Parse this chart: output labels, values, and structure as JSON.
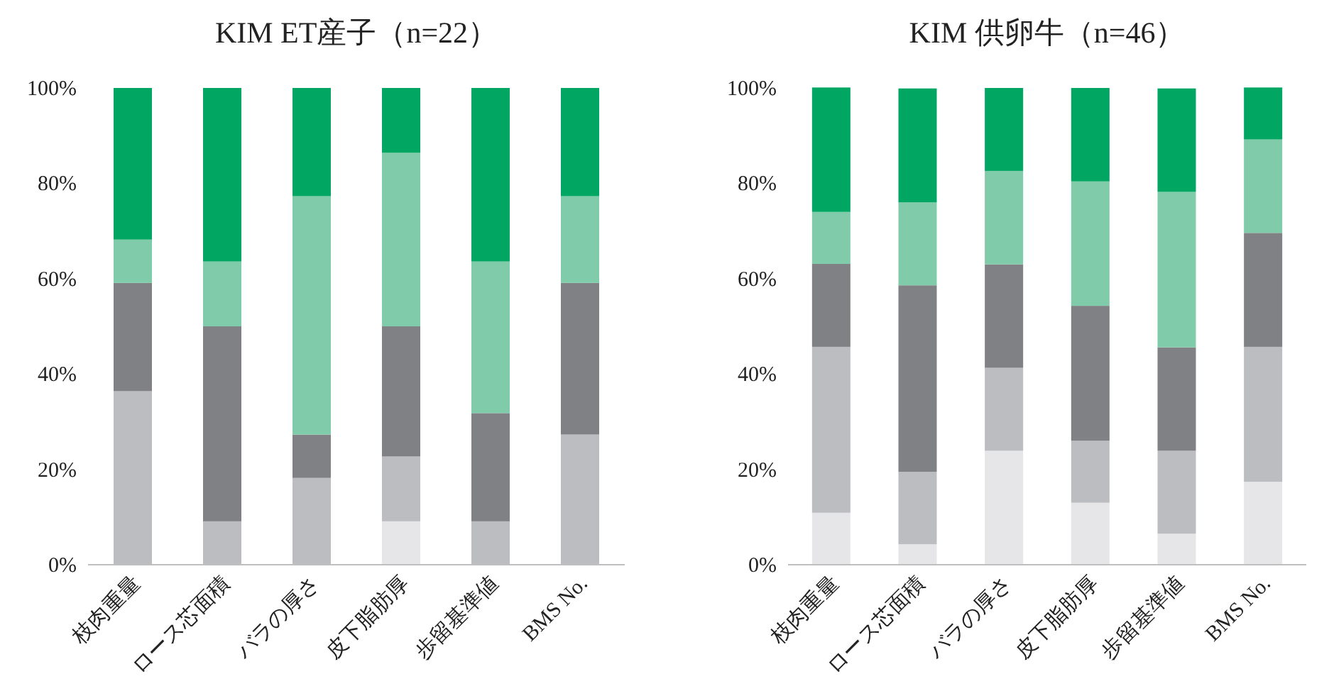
{
  "chart_data": [
    {
      "type": "bar",
      "stacked": true,
      "title": "KIM ET産子（n=22）",
      "categories": [
        "枝肉重量",
        "ロース芯面積",
        "バラの厚さ",
        "皮下脂肪厚",
        "歩留基準値",
        "BMS No."
      ],
      "series": [
        {
          "color": "#e6e6e8",
          "values": [
            0,
            0,
            0,
            9.1,
            0,
            0
          ]
        },
        {
          "color": "#bcbdc1",
          "values": [
            36.4,
            9.1,
            18.2,
            13.6,
            9.1,
            27.3
          ]
        },
        {
          "color": "#808184",
          "values": [
            22.7,
            40.9,
            9.1,
            27.3,
            22.7,
            31.8
          ]
        },
        {
          "color": "#80cba9",
          "values": [
            9.1,
            13.6,
            50,
            36.4,
            31.8,
            18.2
          ]
        },
        {
          "color": "#00a661",
          "values": [
            31.8,
            36.4,
            22.7,
            13.6,
            36.4,
            22.7
          ]
        }
      ],
      "ylim": [
        0,
        100
      ],
      "yticks": [
        {
          "value": 0,
          "label": "0%"
        },
        {
          "value": 20,
          "label": "20%"
        },
        {
          "value": 40,
          "label": "40%"
        },
        {
          "value": 60,
          "label": "60%"
        },
        {
          "value": 80,
          "label": "80%"
        },
        {
          "value": 100,
          "label": "100%"
        }
      ]
    },
    {
      "type": "bar",
      "stacked": true,
      "title": "KIM 供卵牛（n=46）",
      "categories": [
        "枝肉重量",
        "ロース芯面積",
        "バラの厚さ",
        "皮下脂肪厚",
        "歩留基準値",
        "BMS No."
      ],
      "series": [
        {
          "color": "#e6e6e8",
          "values": [
            10.9,
            4.3,
            23.9,
            13,
            6.5,
            17.4
          ]
        },
        {
          "color": "#bcbdc1",
          "values": [
            34.8,
            15.2,
            17.4,
            13,
            17.4,
            28.3
          ]
        },
        {
          "color": "#808184",
          "values": [
            17.4,
            39.1,
            21.7,
            28.3,
            21.7,
            23.9
          ]
        },
        {
          "color": "#80cba9",
          "values": [
            10.9,
            17.4,
            19.6,
            26.1,
            32.6,
            19.6
          ]
        },
        {
          "color": "#00a661",
          "values": [
            26.1,
            23.9,
            17.4,
            19.6,
            21.7,
            10.9
          ]
        }
      ],
      "ylim": [
        0,
        100
      ],
      "yticks": [
        {
          "value": 0,
          "label": "0%"
        },
        {
          "value": 20,
          "label": "20%"
        },
        {
          "value": 40,
          "label": "40%"
        },
        {
          "value": 60,
          "label": "60%"
        },
        {
          "value": 80,
          "label": "80%"
        },
        {
          "value": 100,
          "label": "100%"
        }
      ]
    }
  ]
}
